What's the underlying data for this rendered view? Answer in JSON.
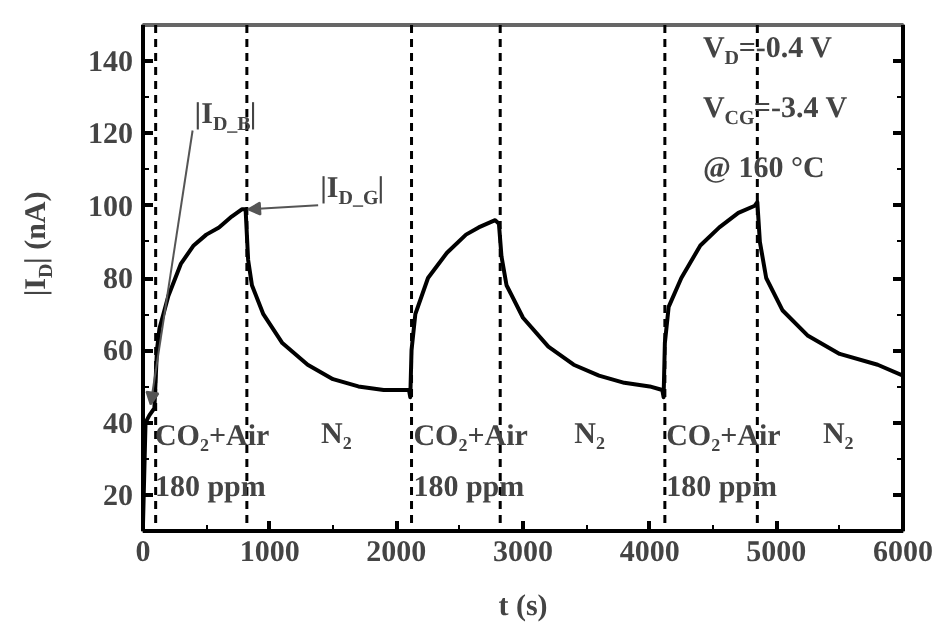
{
  "chart_data": {
    "type": "line",
    "xlabel": "t (s)",
    "ylabel": "|I$_{D}$| (nA)",
    "xlim": [
      0,
      6000
    ],
    "ylim": [
      10,
      150
    ],
    "xticks": [
      0,
      1000,
      2000,
      3000,
      4000,
      5000,
      6000
    ],
    "yticks": [
      20,
      40,
      60,
      80,
      100,
      120,
      140
    ],
    "grid": false,
    "marker": "none",
    "line_style": "solid",
    "series": [
      {
        "color": "#000000",
        "x": [
          0,
          20,
          50,
          90,
          110,
          130,
          200,
          300,
          400,
          500,
          600,
          700,
          780,
          810,
          830,
          860,
          950,
          1100,
          1300,
          1500,
          1700,
          1900,
          2100,
          2110,
          2120,
          2150,
          2250,
          2400,
          2550,
          2650,
          2780,
          2810,
          2830,
          2870,
          3000,
          3200,
          3400,
          3600,
          3800,
          4000,
          4100,
          4110,
          4120,
          4150,
          4250,
          4400,
          4550,
          4700,
          4830,
          4850,
          4870,
          4920,
          5050,
          5250,
          5500,
          5800,
          6000
        ],
        "values": [
          12,
          40,
          42,
          44,
          60,
          66,
          75,
          84,
          89,
          92,
          94,
          97,
          99,
          99,
          85,
          78,
          70,
          62,
          56,
          52,
          50,
          49,
          49,
          47,
          60,
          70,
          80,
          87,
          92,
          94,
          96,
          95,
          86,
          78,
          69,
          61,
          56,
          53,
          51,
          50,
          49,
          47,
          62,
          72,
          80,
          89,
          94,
          98,
          100,
          101,
          90,
          80,
          71,
          64,
          59,
          56,
          53
        ]
      }
    ],
    "ref_lines": [
      {
        "axis": "x",
        "value": 100,
        "line_style": "dashed",
        "color": "#000000"
      },
      {
        "axis": "x",
        "value": 820,
        "line_style": "dashed",
        "color": "#000000"
      },
      {
        "axis": "x",
        "value": 2120,
        "line_style": "dashed",
        "color": "#000000"
      },
      {
        "axis": "x",
        "value": 2820,
        "line_style": "dashed",
        "color": "#000000"
      },
      {
        "axis": "x",
        "value": 4120,
        "line_style": "dashed",
        "color": "#000000"
      },
      {
        "axis": "x",
        "value": 4850,
        "line_style": "dashed",
        "color": "#000000"
      }
    ],
    "annotations": [
      {
        "text": "|I$_{D_B}$|",
        "x": 60,
        "y": 45
      },
      {
        "text": "|I$_{D_G}$|",
        "x": 830,
        "y": 99
      },
      {
        "text": "CO₂+Air",
        "x": 94,
        "y": 36
      },
      {
        "text": "180 ppm",
        "x": 94,
        "y": 22
      },
      "N₂",
      {
        "text": "CO₂+Air",
        "x": 2135,
        "y": 36
      },
      {
        "text": "180 ppm",
        "x": 2135,
        "y": 22
      },
      "N₂",
      {
        "text": "CO₂+Air",
        "x": 4130,
        "y": 36
      },
      {
        "text": "180 ppm",
        "x": 4130,
        "y": 22
      },
      "N₂",
      "V$_{D}$=-0.4 V",
      "V$_{CG}$=-3.4 V",
      "@ 160 °C"
    ]
  }
}
